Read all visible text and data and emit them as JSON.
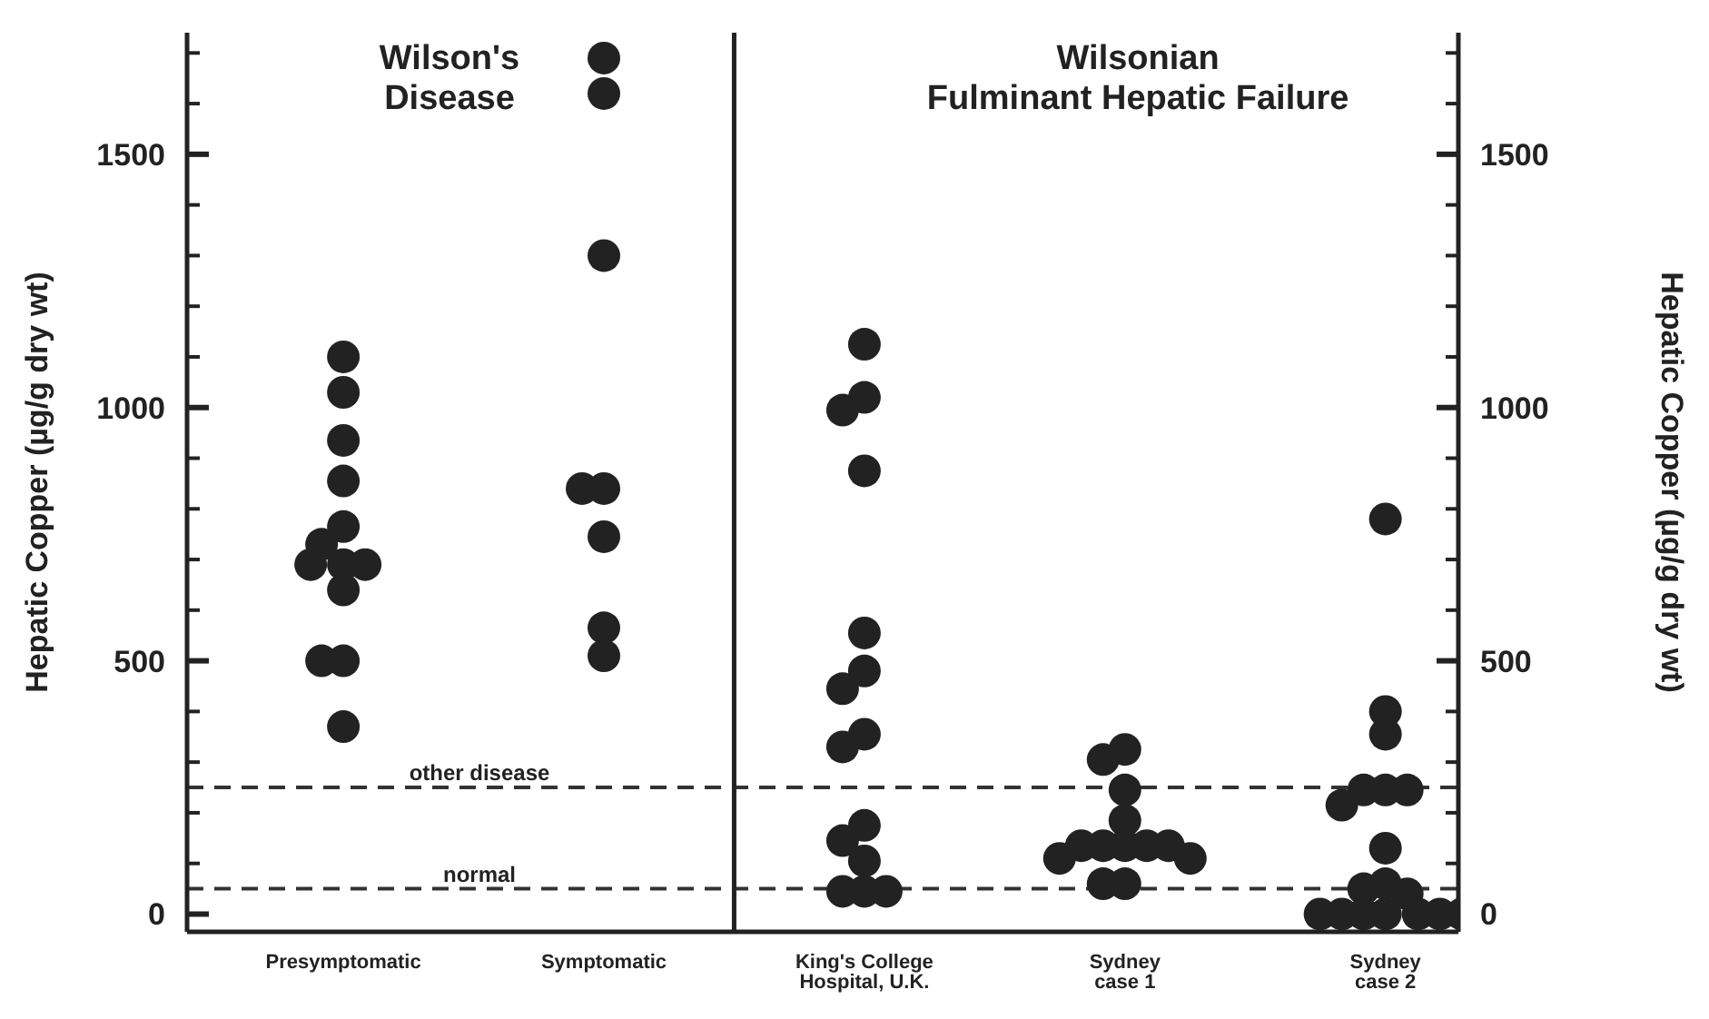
{
  "chart_data": {
    "type": "scatter",
    "categories": [
      "Presymptomatic",
      "Symptomatic",
      "King's College\nHospital, U.K.",
      "Sydney\ncase 1",
      "Sydney\ncase 2"
    ],
    "series": [
      {
        "color": "#222222",
        "marker": "circle",
        "x": [
          "Presymptomatic",
          "Presymptomatic",
          "Presymptomatic",
          "Presymptomatic",
          "Presymptomatic",
          "Presymptomatic",
          "Presymptomatic",
          "Presymptomatic",
          "Presymptomatic",
          "Presymptomatic",
          "Presymptomatic",
          "Presymptomatic",
          "Presymptomatic",
          "Symptomatic",
          "Symptomatic",
          "Symptomatic",
          "Symptomatic",
          "Symptomatic",
          "Symptomatic",
          "Symptomatic",
          "Symptomatic",
          "King's College\nHospital, U.K.",
          "King's College\nHospital, U.K.",
          "King's College\nHospital, U.K.",
          "King's College\nHospital, U.K.",
          "King's College\nHospital, U.K.",
          "King's College\nHospital, U.K.",
          "King's College\nHospital, U.K.",
          "King's College\nHospital, U.K.",
          "King's College\nHospital, U.K.",
          "King's College\nHospital, U.K.",
          "King's College\nHospital, U.K.",
          "King's College\nHospital, U.K.",
          "King's College\nHospital, U.K.",
          "King's College\nHospital, U.K.",
          "King's College\nHospital, U.K.",
          "Sydney\ncase 1",
          "Sydney\ncase 1",
          "Sydney\ncase 1",
          "Sydney\ncase 1",
          "Sydney\ncase 1",
          "Sydney\ncase 1",
          "Sydney\ncase 1",
          "Sydney\ncase 1",
          "Sydney\ncase 1",
          "Sydney\ncase 1",
          "Sydney\ncase 1",
          "Sydney\ncase 1",
          "Sydney\ncase 1",
          "Sydney\ncase 2",
          "Sydney\ncase 2",
          "Sydney\ncase 2",
          "Sydney\ncase 2",
          "Sydney\ncase 2",
          "Sydney\ncase 2",
          "Sydney\ncase 2",
          "Sydney\ncase 2",
          "Sydney\ncase 2",
          "Sydney\ncase 2",
          "Sydney\ncase 2",
          "Sydney\ncase 2",
          "Sydney\ncase 2",
          "Sydney\ncase 2",
          "Sydney\ncase 2",
          "Sydney\ncase 2",
          "Sydney\ncase 2",
          "Sydney\ncase 2"
        ],
        "values": [
          1100,
          1030,
          935,
          855,
          765,
          730,
          690,
          690,
          690,
          640,
          500,
          500,
          370,
          1690,
          1620,
          1300,
          840,
          840,
          745,
          565,
          510,
          1125,
          1020,
          995,
          875,
          555,
          480,
          445,
          355,
          330,
          175,
          145,
          105,
          45,
          45,
          45,
          325,
          305,
          245,
          185,
          135,
          135,
          135,
          135,
          135,
          110,
          110,
          60,
          60,
          780,
          400,
          355,
          245,
          245,
          245,
          215,
          130,
          60,
          50,
          40,
          0,
          0,
          0,
          0,
          0,
          0,
          0
        ]
      }
    ],
    "ylabel": "Hepatic Copper (µg/g dry wt)",
    "y2label": "Hepatic Copper (µg/g dry wt)",
    "ylim": [
      -35,
      1740
    ],
    "yticks": [
      0,
      {
        "value": 100,
        "label": null
      },
      {
        "value": 200,
        "label": null
      },
      {
        "value": 300,
        "label": null
      },
      {
        "value": 400,
        "label": null
      },
      500,
      {
        "value": 600,
        "label": null
      },
      {
        "value": 700,
        "label": null
      },
      {
        "value": 800,
        "label": null
      },
      {
        "value": 900,
        "label": null
      },
      1000,
      {
        "value": 1100,
        "label": null
      },
      {
        "value": 1200,
        "label": null
      },
      {
        "value": 1300,
        "label": null
      },
      {
        "value": 1400,
        "label": null
      },
      1500,
      {
        "value": 1600,
        "label": null
      },
      {
        "value": 1700,
        "label": null
      }
    ],
    "y2lim": [
      -35,
      1740
    ],
    "y2ticks": [
      0,
      {
        "value": 100,
        "label": null
      },
      {
        "value": 200,
        "label": null
      },
      {
        "value": 300,
        "label": null
      },
      {
        "value": 400,
        "label": null
      },
      500,
      {
        "value": 600,
        "label": null
      },
      {
        "value": 700,
        "label": null
      },
      {
        "value": 800,
        "label": null
      },
      {
        "value": 900,
        "label": null
      },
      1000,
      {
        "value": 1100,
        "label": null
      },
      {
        "value": 1200,
        "label": null
      },
      {
        "value": 1300,
        "label": null
      },
      {
        "value": 1400,
        "label": null
      },
      1500,
      {
        "value": 1600,
        "label": null
      },
      {
        "value": 1700,
        "label": null
      }
    ],
    "ref_lines": [
      {
        "axis": "y",
        "value": 250,
        "label": "other disease",
        "color": "#333333",
        "line_style": "dashed"
      },
      {
        "axis": "y",
        "value": 50,
        "label": "normal",
        "color": "#333333",
        "line_style": "dashed"
      }
    ],
    "annotations": [
      "Wilson's\nDisease",
      "Wilsonian\nFulminant Hepatic Failure"
    ],
    "grid": false,
    "legend": false
  }
}
